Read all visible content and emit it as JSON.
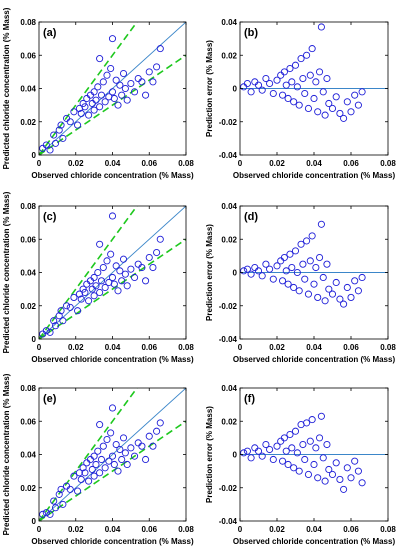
{
  "figure": {
    "xlabel": "Observed chloride concentration (% Mass)",
    "ylabel_left": "Predicted chloride concentration (% Mass)",
    "ylabel_right": "Prediction error (% Mass)"
  },
  "chart_data": [
    {
      "panel": "(a)",
      "type": "scatter",
      "xlabel": "Observed chloride concentration (% Mass)",
      "ylabel": "Predicted chloride concentration (% Mass)",
      "xlim": [
        0,
        0.08
      ],
      "ylim": [
        0,
        0.08
      ],
      "xticks": [
        "0",
        "0.02",
        "0.04",
        "0.06",
        "0.08"
      ],
      "yticks": [
        "0",
        "0.02",
        "0.04",
        "0.06",
        "0.08"
      ],
      "reference_line": "y = x",
      "bounds": [
        "y = 1.5x",
        "y = 0.75x"
      ],
      "points": [
        [
          0.002,
          0.004
        ],
        [
          0.004,
          0.006
        ],
        [
          0.006,
          0.003
        ],
        [
          0.008,
          0.012
        ],
        [
          0.009,
          0.007
        ],
        [
          0.011,
          0.015
        ],
        [
          0.012,
          0.018
        ],
        [
          0.013,
          0.01
        ],
        [
          0.015,
          0.022
        ],
        [
          0.017,
          0.02
        ],
        [
          0.019,
          0.026
        ],
        [
          0.021,
          0.018
        ],
        [
          0.022,
          0.028
        ],
        [
          0.023,
          0.025
        ],
        [
          0.024,
          0.031
        ],
        [
          0.025,
          0.029
        ],
        [
          0.026,
          0.034
        ],
        [
          0.027,
          0.024
        ],
        [
          0.028,
          0.036
        ],
        [
          0.029,
          0.031
        ],
        [
          0.03,
          0.038
        ],
        [
          0.03,
          0.027
        ],
        [
          0.031,
          0.033
        ],
        [
          0.032,
          0.041
        ],
        [
          0.033,
          0.029
        ],
        [
          0.034,
          0.036
        ],
        [
          0.035,
          0.044
        ],
        [
          0.036,
          0.032
        ],
        [
          0.037,
          0.048
        ],
        [
          0.038,
          0.035
        ],
        [
          0.039,
          0.052
        ],
        [
          0.04,
          0.038
        ],
        [
          0.041,
          0.034
        ],
        [
          0.042,
          0.045
        ],
        [
          0.043,
          0.03
        ],
        [
          0.044,
          0.042
        ],
        [
          0.045,
          0.036
        ],
        [
          0.046,
          0.049
        ],
        [
          0.047,
          0.04
        ],
        [
          0.048,
          0.033
        ],
        [
          0.05,
          0.043
        ],
        [
          0.052,
          0.038
        ],
        [
          0.054,
          0.046
        ],
        [
          0.056,
          0.044
        ],
        [
          0.058,
          0.036
        ],
        [
          0.06,
          0.05
        ],
        [
          0.062,
          0.044
        ],
        [
          0.064,
          0.053
        ],
        [
          0.066,
          0.064
        ],
        [
          0.04,
          0.07
        ],
        [
          0.033,
          0.058
        ]
      ]
    },
    {
      "panel": "(b)",
      "type": "scatter",
      "xlabel": "Observed chloride concentration (% Mass)",
      "ylabel": "Prediction error (% Mass)",
      "xlim": [
        0,
        0.08
      ],
      "ylim": [
        -0.04,
        0.04
      ],
      "xticks": [
        "0",
        "0.02",
        "0.04",
        "0.06",
        "0.08"
      ],
      "yticks": [
        "-0.04",
        "-0.02",
        "0",
        "0.02",
        "0.04"
      ],
      "reference_line": "y = 0",
      "points": [
        [
          0.002,
          0.001
        ],
        [
          0.004,
          0.003
        ],
        [
          0.006,
          -0.002
        ],
        [
          0.008,
          0.004
        ],
        [
          0.01,
          0.002
        ],
        [
          0.012,
          -0.001
        ],
        [
          0.014,
          0.006
        ],
        [
          0.016,
          0.003
        ],
        [
          0.018,
          -0.003
        ],
        [
          0.02,
          0.005
        ],
        [
          0.022,
          0.008
        ],
        [
          0.023,
          -0.004
        ],
        [
          0.024,
          0.01
        ],
        [
          0.025,
          0.002
        ],
        [
          0.026,
          -0.006
        ],
        [
          0.027,
          0.012
        ],
        [
          0.028,
          0.004
        ],
        [
          0.029,
          -0.008
        ],
        [
          0.03,
          0.014
        ],
        [
          0.031,
          0.001
        ],
        [
          0.032,
          -0.01
        ],
        [
          0.033,
          0.018
        ],
        [
          0.034,
          0.006
        ],
        [
          0.035,
          -0.003
        ],
        [
          0.036,
          0.02
        ],
        [
          0.037,
          -0.012
        ],
        [
          0.038,
          0.008
        ],
        [
          0.039,
          0.024
        ],
        [
          0.04,
          -0.006
        ],
        [
          0.041,
          0.004
        ],
        [
          0.042,
          -0.014
        ],
        [
          0.043,
          0.01
        ],
        [
          0.044,
          0.037
        ],
        [
          0.045,
          -0.002
        ],
        [
          0.046,
          -0.016
        ],
        [
          0.047,
          0.006
        ],
        [
          0.048,
          -0.009
        ],
        [
          0.05,
          -0.012
        ],
        [
          0.052,
          -0.005
        ],
        [
          0.054,
          -0.015
        ],
        [
          0.056,
          -0.018
        ],
        [
          0.058,
          -0.008
        ],
        [
          0.06,
          -0.014
        ],
        [
          0.062,
          -0.004
        ],
        [
          0.064,
          -0.01
        ],
        [
          0.066,
          -0.002
        ]
      ]
    },
    {
      "panel": "(c)",
      "type": "scatter",
      "xlabel": "Observed chloride concentration (% Mass)",
      "ylabel": "Predicted chloride concentration (% Mass)",
      "xlim": [
        0,
        0.08
      ],
      "ylim": [
        0,
        0.08
      ],
      "xticks": [
        "0",
        "0.02",
        "0.04",
        "0.06",
        "0.08"
      ],
      "yticks": [
        "0",
        "0.02",
        "0.04",
        "0.06",
        "0.08"
      ],
      "reference_line": "y = x",
      "bounds": [
        "y = 1.5x",
        "y = 0.75x"
      ],
      "points": [
        [
          0.002,
          0.003
        ],
        [
          0.004,
          0.005
        ],
        [
          0.006,
          0.004
        ],
        [
          0.008,
          0.011
        ],
        [
          0.009,
          0.008
        ],
        [
          0.011,
          0.014
        ],
        [
          0.012,
          0.017
        ],
        [
          0.013,
          0.011
        ],
        [
          0.015,
          0.02
        ],
        [
          0.017,
          0.019
        ],
        [
          0.019,
          0.025
        ],
        [
          0.021,
          0.017
        ],
        [
          0.022,
          0.027
        ],
        [
          0.023,
          0.024
        ],
        [
          0.024,
          0.03
        ],
        [
          0.025,
          0.028
        ],
        [
          0.026,
          0.033
        ],
        [
          0.027,
          0.023
        ],
        [
          0.028,
          0.035
        ],
        [
          0.029,
          0.03
        ],
        [
          0.03,
          0.037
        ],
        [
          0.03,
          0.026
        ],
        [
          0.031,
          0.032
        ],
        [
          0.032,
          0.04
        ],
        [
          0.033,
          0.028
        ],
        [
          0.034,
          0.035
        ],
        [
          0.035,
          0.043
        ],
        [
          0.036,
          0.031
        ],
        [
          0.037,
          0.047
        ],
        [
          0.038,
          0.034
        ],
        [
          0.039,
          0.051
        ],
        [
          0.04,
          0.037
        ],
        [
          0.041,
          0.033
        ],
        [
          0.042,
          0.044
        ],
        [
          0.043,
          0.029
        ],
        [
          0.044,
          0.041
        ],
        [
          0.045,
          0.035
        ],
        [
          0.046,
          0.048
        ],
        [
          0.047,
          0.039
        ],
        [
          0.048,
          0.032
        ],
        [
          0.05,
          0.042
        ],
        [
          0.052,
          0.037
        ],
        [
          0.054,
          0.045
        ],
        [
          0.056,
          0.043
        ],
        [
          0.058,
          0.035
        ],
        [
          0.06,
          0.049
        ],
        [
          0.062,
          0.043
        ],
        [
          0.064,
          0.052
        ],
        [
          0.066,
          0.06
        ],
        [
          0.04,
          0.074
        ],
        [
          0.033,
          0.057
        ]
      ]
    },
    {
      "panel": "(d)",
      "type": "scatter",
      "xlabel": "Observed chloride concentration (% Mass)",
      "ylabel": "Prediction error (% Mass)",
      "xlim": [
        0,
        0.08
      ],
      "ylim": [
        -0.04,
        0.04
      ],
      "xticks": [
        "0",
        "0.02",
        "0.04",
        "0.06",
        "0.08"
      ],
      "yticks": [
        "-0.04",
        "-0.02",
        "0",
        "0.02",
        "0.04"
      ],
      "reference_line": "y = 0",
      "points": [
        [
          0.002,
          0.001
        ],
        [
          0.004,
          0.002
        ],
        [
          0.006,
          -0.001
        ],
        [
          0.008,
          0.003
        ],
        [
          0.01,
          0.001
        ],
        [
          0.012,
          -0.002
        ],
        [
          0.014,
          0.005
        ],
        [
          0.016,
          0.002
        ],
        [
          0.018,
          -0.004
        ],
        [
          0.02,
          0.004
        ],
        [
          0.022,
          0.007
        ],
        [
          0.023,
          -0.005
        ],
        [
          0.024,
          0.009
        ],
        [
          0.025,
          0.001
        ],
        [
          0.026,
          -0.007
        ],
        [
          0.027,
          0.011
        ],
        [
          0.028,
          0.003
        ],
        [
          0.029,
          -0.009
        ],
        [
          0.03,
          0.013
        ],
        [
          0.031,
          0.0
        ],
        [
          0.032,
          -0.011
        ],
        [
          0.033,
          0.017
        ],
        [
          0.034,
          0.005
        ],
        [
          0.035,
          -0.004
        ],
        [
          0.036,
          0.019
        ],
        [
          0.037,
          -0.013
        ],
        [
          0.038,
          0.007
        ],
        [
          0.039,
          0.022
        ],
        [
          0.04,
          -0.007
        ],
        [
          0.041,
          0.003
        ],
        [
          0.042,
          -0.015
        ],
        [
          0.043,
          0.009
        ],
        [
          0.044,
          0.029
        ],
        [
          0.045,
          -0.003
        ],
        [
          0.046,
          -0.017
        ],
        [
          0.047,
          0.005
        ],
        [
          0.048,
          -0.01
        ],
        [
          0.05,
          -0.013
        ],
        [
          0.052,
          -0.006
        ],
        [
          0.054,
          -0.016
        ],
        [
          0.056,
          -0.019
        ],
        [
          0.058,
          -0.009
        ],
        [
          0.06,
          -0.015
        ],
        [
          0.062,
          -0.005
        ],
        [
          0.064,
          -0.011
        ],
        [
          0.066,
          -0.003
        ]
      ]
    },
    {
      "panel": "(e)",
      "type": "scatter",
      "xlabel": "Observed chloride concentration (% Mass)",
      "ylabel": "Predicted chloride concentration (% Mass)",
      "xlim": [
        0,
        0.08
      ],
      "ylim": [
        0,
        0.08
      ],
      "xticks": [
        "0",
        "0.02",
        "0.04",
        "0.06",
        "0.08"
      ],
      "yticks": [
        "0",
        "0.02",
        "0.04",
        "0.06",
        "0.08"
      ],
      "reference_line": "y = x",
      "bounds": [
        "y = 1.5x",
        "y = 0.75x"
      ],
      "points": [
        [
          0.002,
          0.004
        ],
        [
          0.004,
          0.005
        ],
        [
          0.006,
          0.004
        ],
        [
          0.008,
          0.012
        ],
        [
          0.009,
          0.008
        ],
        [
          0.011,
          0.016
        ],
        [
          0.012,
          0.019
        ],
        [
          0.013,
          0.01
        ],
        [
          0.015,
          0.021
        ],
        [
          0.017,
          0.019
        ],
        [
          0.019,
          0.027
        ],
        [
          0.021,
          0.018
        ],
        [
          0.022,
          0.029
        ],
        [
          0.023,
          0.025
        ],
        [
          0.024,
          0.032
        ],
        [
          0.025,
          0.029
        ],
        [
          0.026,
          0.035
        ],
        [
          0.027,
          0.024
        ],
        [
          0.028,
          0.037
        ],
        [
          0.029,
          0.031
        ],
        [
          0.03,
          0.039
        ],
        [
          0.03,
          0.027
        ],
        [
          0.031,
          0.034
        ],
        [
          0.032,
          0.042
        ],
        [
          0.033,
          0.029
        ],
        [
          0.034,
          0.037
        ],
        [
          0.035,
          0.045
        ],
        [
          0.036,
          0.032
        ],
        [
          0.037,
          0.049
        ],
        [
          0.038,
          0.036
        ],
        [
          0.039,
          0.053
        ],
        [
          0.04,
          0.039
        ],
        [
          0.041,
          0.034
        ],
        [
          0.042,
          0.046
        ],
        [
          0.043,
          0.03
        ],
        [
          0.044,
          0.043
        ],
        [
          0.045,
          0.037
        ],
        [
          0.046,
          0.05
        ],
        [
          0.047,
          0.041
        ],
        [
          0.048,
          0.034
        ],
        [
          0.05,
          0.044
        ],
        [
          0.052,
          0.039
        ],
        [
          0.054,
          0.047
        ],
        [
          0.056,
          0.045
        ],
        [
          0.058,
          0.037
        ],
        [
          0.06,
          0.051
        ],
        [
          0.062,
          0.045
        ],
        [
          0.064,
          0.054
        ],
        [
          0.066,
          0.059
        ],
        [
          0.04,
          0.068
        ],
        [
          0.033,
          0.058
        ]
      ]
    },
    {
      "panel": "(f)",
      "type": "scatter",
      "xlabel": "Observed chloride concentration (% Mass)",
      "ylabel": "Prediction error (% Mass)",
      "xlim": [
        0,
        0.08
      ],
      "ylim": [
        -0.04,
        0.04
      ],
      "xticks": [
        "0",
        "0.02",
        "0.04",
        "0.06",
        "0.08"
      ],
      "yticks": [
        "-0.04",
        "-0.02",
        "0",
        "0.02",
        "0.04"
      ],
      "reference_line": "y = 0",
      "points": [
        [
          0.002,
          0.001
        ],
        [
          0.004,
          0.002
        ],
        [
          0.006,
          -0.002
        ],
        [
          0.008,
          0.004
        ],
        [
          0.01,
          0.002
        ],
        [
          0.012,
          -0.001
        ],
        [
          0.014,
          0.006
        ],
        [
          0.016,
          0.003
        ],
        [
          0.018,
          -0.003
        ],
        [
          0.02,
          0.005
        ],
        [
          0.022,
          0.008
        ],
        [
          0.023,
          -0.004
        ],
        [
          0.024,
          0.01
        ],
        [
          0.025,
          0.002
        ],
        [
          0.026,
          -0.006
        ],
        [
          0.027,
          0.012
        ],
        [
          0.028,
          0.004
        ],
        [
          0.029,
          -0.008
        ],
        [
          0.03,
          0.014
        ],
        [
          0.031,
          0.001
        ],
        [
          0.032,
          -0.01
        ],
        [
          0.033,
          0.018
        ],
        [
          0.034,
          0.006
        ],
        [
          0.035,
          -0.003
        ],
        [
          0.036,
          0.019
        ],
        [
          0.037,
          -0.012
        ],
        [
          0.038,
          0.008
        ],
        [
          0.039,
          0.021
        ],
        [
          0.04,
          -0.006
        ],
        [
          0.041,
          0.004
        ],
        [
          0.042,
          -0.014
        ],
        [
          0.043,
          0.01
        ],
        [
          0.044,
          0.023
        ],
        [
          0.045,
          -0.002
        ],
        [
          0.046,
          -0.016
        ],
        [
          0.047,
          0.006
        ],
        [
          0.048,
          -0.009
        ],
        [
          0.05,
          -0.012
        ],
        [
          0.052,
          -0.005
        ],
        [
          0.054,
          -0.015
        ],
        [
          0.056,
          -0.021
        ],
        [
          0.058,
          -0.008
        ],
        [
          0.06,
          -0.014
        ],
        [
          0.062,
          -0.004
        ],
        [
          0.064,
          -0.01
        ],
        [
          0.066,
          -0.017
        ]
      ]
    }
  ]
}
